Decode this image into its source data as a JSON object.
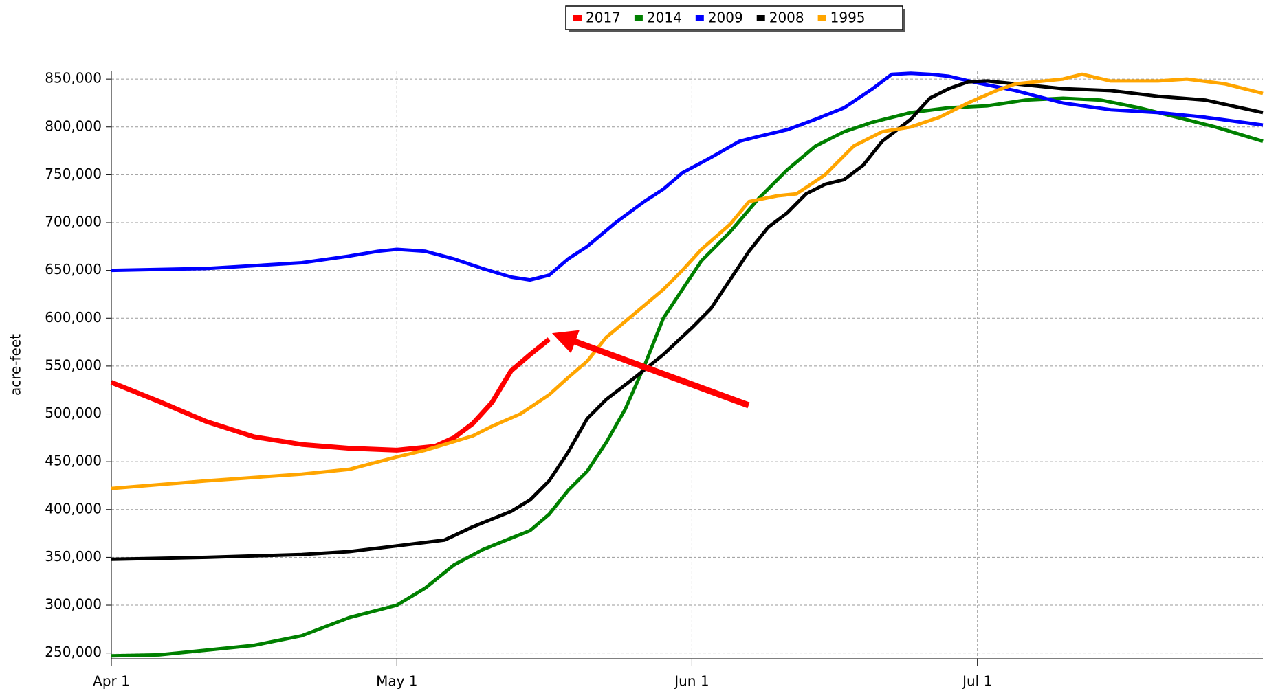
{
  "chart_data": {
    "type": "line",
    "y_label": "acre-feet",
    "xlim": [
      0,
      121
    ],
    "xticks": [
      {
        "value": 0,
        "label": "Apr 1"
      },
      {
        "value": 30,
        "label": "May 1"
      },
      {
        "value": 61,
        "label": "Jun 1"
      },
      {
        "value": 91,
        "label": "Jul 1"
      }
    ],
    "ylim": [
      244000,
      858000
    ],
    "yticks": [
      {
        "value": 250000,
        "label": "250,000"
      },
      {
        "value": 300000,
        "label": "300,000"
      },
      {
        "value": 350000,
        "label": "350,000"
      },
      {
        "value": 400000,
        "label": "400,000"
      },
      {
        "value": 450000,
        "label": "450,000"
      },
      {
        "value": 500000,
        "label": "500,000"
      },
      {
        "value": 550000,
        "label": "550,000"
      },
      {
        "value": 600000,
        "label": "600,000"
      },
      {
        "value": 650000,
        "label": "650,000"
      },
      {
        "value": 700000,
        "label": "700,000"
      },
      {
        "value": 750000,
        "label": "750,000"
      },
      {
        "value": 800000,
        "label": "800,000"
      },
      {
        "value": 850000,
        "label": "850,000"
      }
    ],
    "grid": true,
    "legend": "top",
    "series": [
      {
        "name": "2017",
        "color": "#ff0000",
        "x": [
          0,
          5,
          10,
          15,
          20,
          25,
          30,
          34,
          36,
          38,
          40,
          42,
          44,
          46
        ],
        "values": [
          533000,
          513000,
          492000,
          476000,
          468000,
          464000,
          462000,
          466000,
          475000,
          490000,
          512000,
          545000,
          562000,
          578000
        ]
      },
      {
        "name": "2014",
        "color": "#008000",
        "x": [
          0,
          5,
          10,
          15,
          20,
          25,
          30,
          33,
          36,
          39,
          42,
          44,
          46,
          48,
          50,
          52,
          54,
          56,
          58,
          60,
          62,
          65,
          68,
          71,
          74,
          77,
          80,
          84,
          88,
          92,
          96,
          100,
          104,
          108,
          112,
          116,
          121
        ],
        "values": [
          247000,
          248000,
          253000,
          258000,
          268000,
          287000,
          300000,
          318000,
          342000,
          358000,
          370000,
          378000,
          395000,
          420000,
          440000,
          470000,
          505000,
          550000,
          600000,
          630000,
          660000,
          690000,
          725000,
          755000,
          780000,
          795000,
          805000,
          815000,
          820000,
          822000,
          828000,
          830000,
          828000,
          820000,
          810000,
          800000,
          785000
        ]
      },
      {
        "name": "2009",
        "color": "#0000ff",
        "x": [
          0,
          10,
          15,
          20,
          25,
          28,
          30,
          33,
          36,
          39,
          42,
          44,
          46,
          48,
          50,
          53,
          56,
          58,
          60,
          63,
          66,
          68,
          71,
          74,
          77,
          80,
          82,
          84,
          86,
          88,
          91,
          95,
          100,
          105,
          110,
          115,
          121
        ],
        "values": [
          650000,
          652000,
          655000,
          658000,
          665000,
          670000,
          672000,
          670000,
          662000,
          652000,
          643000,
          640000,
          645000,
          662000,
          675000,
          700000,
          722000,
          735000,
          752000,
          768000,
          785000,
          790000,
          797000,
          808000,
          820000,
          840000,
          855000,
          856000,
          855000,
          853000,
          846000,
          838000,
          825000,
          818000,
          815000,
          810000,
          802000
        ]
      },
      {
        "name": "2008",
        "color": "#000000",
        "x": [
          0,
          10,
          20,
          25,
          30,
          35,
          38,
          42,
          44,
          46,
          48,
          50,
          52,
          55,
          58,
          61,
          63,
          65,
          67,
          69,
          71,
          73,
          75,
          77,
          79,
          81,
          84,
          86,
          88,
          90,
          92,
          95,
          100,
          105,
          110,
          115,
          121
        ],
        "values": [
          348000,
          350000,
          353000,
          356000,
          362000,
          368000,
          382000,
          398000,
          410000,
          430000,
          460000,
          495000,
          515000,
          538000,
          562000,
          590000,
          610000,
          640000,
          670000,
          695000,
          710000,
          730000,
          740000,
          745000,
          760000,
          785000,
          808000,
          830000,
          840000,
          847000,
          848000,
          845000,
          840000,
          838000,
          832000,
          828000,
          815000
        ]
      },
      {
        "name": "1995",
        "color": "#ffa500",
        "x": [
          0,
          10,
          20,
          25,
          30,
          33,
          35,
          38,
          40,
          43,
          46,
          48,
          50,
          52,
          55,
          58,
          60,
          62,
          65,
          67,
          70,
          72,
          75,
          78,
          81,
          84,
          87,
          90,
          93,
          95,
          100,
          102,
          105,
          110,
          113,
          117,
          121
        ],
        "values": [
          422000,
          430000,
          437000,
          442000,
          455000,
          462000,
          468000,
          477000,
          487000,
          500000,
          520000,
          538000,
          555000,
          580000,
          605000,
          630000,
          650000,
          672000,
          698000,
          722000,
          728000,
          730000,
          750000,
          780000,
          795000,
          800000,
          810000,
          825000,
          838000,
          845000,
          850000,
          855000,
          848000,
          848000,
          850000,
          845000,
          835000
        ]
      }
    ]
  }
}
